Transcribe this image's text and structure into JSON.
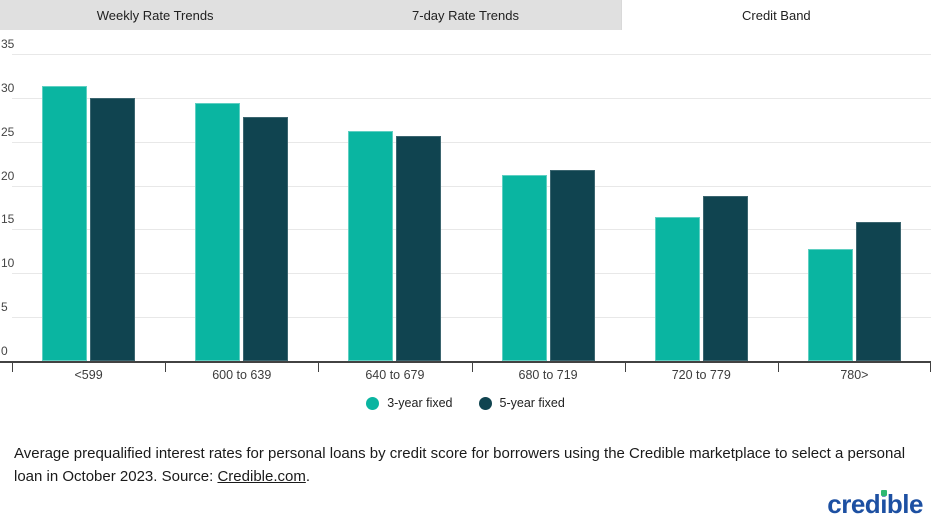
{
  "tabs": [
    {
      "label": "Weekly Rate Trends",
      "active": false
    },
    {
      "label": "7-day Rate Trends",
      "active": false
    },
    {
      "label": "Credit Band",
      "active": true
    }
  ],
  "chart_data": {
    "type": "bar",
    "categories": [
      "<599",
      "600 to 639",
      "640 to 679",
      "680 to 719",
      "720 to 779",
      "780>"
    ],
    "series": [
      {
        "name": "3-year fixed",
        "color": "#0ab5a1",
        "values": [
          31.4,
          29.4,
          26.2,
          21.2,
          16.4,
          12.8
        ]
      },
      {
        "name": "5-year fixed",
        "color": "#104450",
        "values": [
          30.0,
          27.8,
          25.6,
          21.8,
          18.8,
          15.8
        ]
      }
    ],
    "title": "",
    "xlabel": "",
    "ylabel": "",
    "ylim": [
      0,
      35
    ],
    "yticks": [
      0,
      5,
      10,
      15,
      20,
      25,
      30,
      35
    ],
    "grid": true,
    "legend_position": "bottom"
  },
  "caption": {
    "text_before": "Average prequalified interest rates for personal loans by credit score for borrowers using the Credible marketplace to select a personal loan in October 2023. Source: ",
    "link": "Credible.com",
    "text_after": "."
  },
  "logo": {
    "part1": "cred",
    "part2": "i",
    "part3": "ble"
  },
  "colors": {
    "teal": "#0ab5a1",
    "dark_teal": "#104450",
    "tab_inactive_bg": "#e0e0e0",
    "tab_active_bg": "#ffffff",
    "gridline": "#e8e8e8",
    "axis": "#424242",
    "logo_blue": "#1d50a2",
    "logo_green": "#2eb872"
  }
}
